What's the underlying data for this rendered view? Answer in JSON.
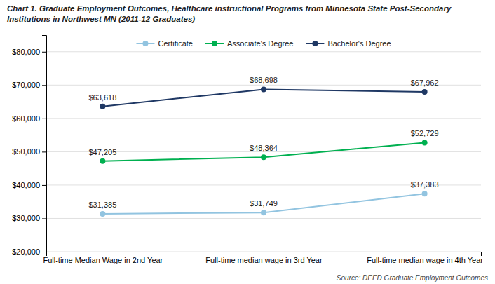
{
  "chart_data": {
    "type": "line",
    "title": [
      "Chart 1. Graduate Employment Outcomes, Healthcare instructional Programs from Minnesota State Post-Secondary",
      "Institutions in Northwest MN (2011-12 Graduates)"
    ],
    "source": "Source: DEED Graduate Employment Outcomes",
    "categories": [
      "Full-time Median Wage in 2nd Year",
      "Full-time median wage in 3rd Year",
      "Full-time median wage in 4th Year"
    ],
    "series": [
      {
        "name": "Certificate",
        "color": "#92C4E0",
        "marker": "circle",
        "values": [
          31385,
          31749,
          37383
        ],
        "value_labels": [
          "$31,385",
          "$31,749",
          "$37,383"
        ]
      },
      {
        "name": "Associate's Degree",
        "color": "#00B050",
        "marker": "circle",
        "values": [
          47205,
          48364,
          52729
        ],
        "value_labels": [
          "$47,205",
          "$48,364",
          "$52,729"
        ]
      },
      {
        "name": "Bachelor's Degree",
        "color": "#1F3864",
        "marker": "circle",
        "values": [
          63618,
          68698,
          67962
        ],
        "value_labels": [
          "$63,618",
          "$68,698",
          "$67,962"
        ]
      }
    ],
    "data_labels": true,
    "ylim": [
      20000,
      85000
    ],
    "yticks": [
      {
        "value": 20000,
        "label": "$20,000"
      },
      {
        "value": 30000,
        "label": "$30,000"
      },
      {
        "value": 40000,
        "label": "$40,000"
      },
      {
        "value": 50000,
        "label": "$50,000"
      },
      {
        "value": 60000,
        "label": "$60,000"
      },
      {
        "value": 70000,
        "label": "$70,000"
      },
      {
        "value": 80000,
        "label": "$80,000"
      }
    ],
    "grid": true,
    "legend": "top"
  }
}
